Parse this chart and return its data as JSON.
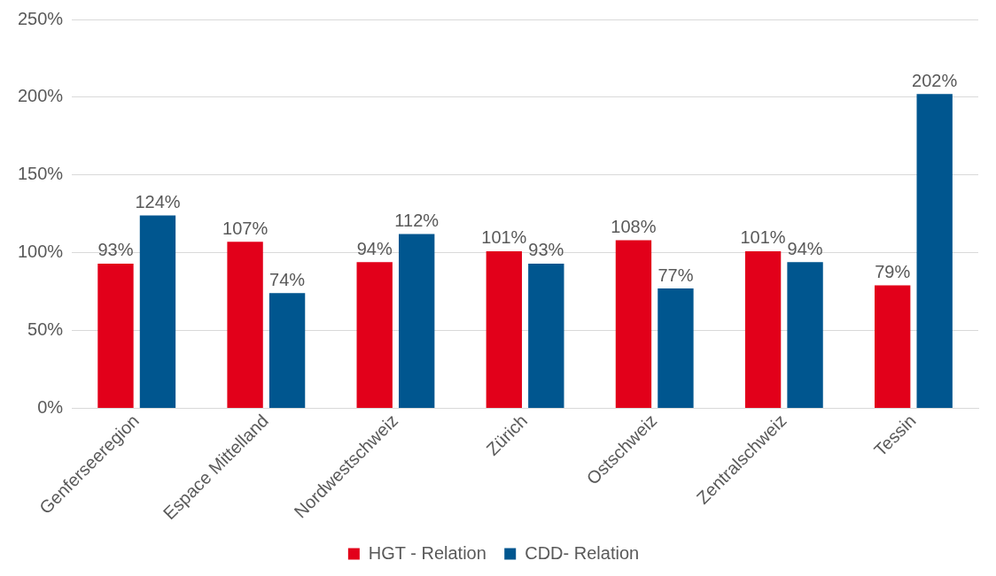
{
  "chart_data": {
    "type": "bar",
    "categories": [
      "Genferseeregion",
      "Espace Mittelland",
      "Nordwestschweiz",
      "Zürich",
      "Ostschweiz",
      "Zentralschweiz",
      "Tessin"
    ],
    "series": [
      {
        "name": "HGT - Relation",
        "color": "#e2001a",
        "values": [
          93,
          107,
          94,
          101,
          108,
          101,
          79
        ],
        "value_labels": [
          "93%",
          "107%",
          "94%",
          "101%",
          "108%",
          "101%",
          "79%"
        ]
      },
      {
        "name": "CDD- Relation",
        "color": "#00568f",
        "values": [
          124,
          74,
          112,
          93,
          77,
          94,
          202
        ],
        "value_labels": [
          "124%",
          "74%",
          "112%",
          "93%",
          "77%",
          "94%",
          "202%"
        ]
      }
    ],
    "ylim": [
      0,
      250
    ],
    "yticks": [
      {
        "value": 0,
        "label": "0%"
      },
      {
        "value": 50,
        "label": "50%"
      },
      {
        "value": 100,
        "label": "100%"
      },
      {
        "value": 150,
        "label": "150%"
      },
      {
        "value": 200,
        "label": "200%"
      },
      {
        "value": 250,
        "label": "250%"
      }
    ],
    "grid": "y",
    "legend": "bottom"
  }
}
